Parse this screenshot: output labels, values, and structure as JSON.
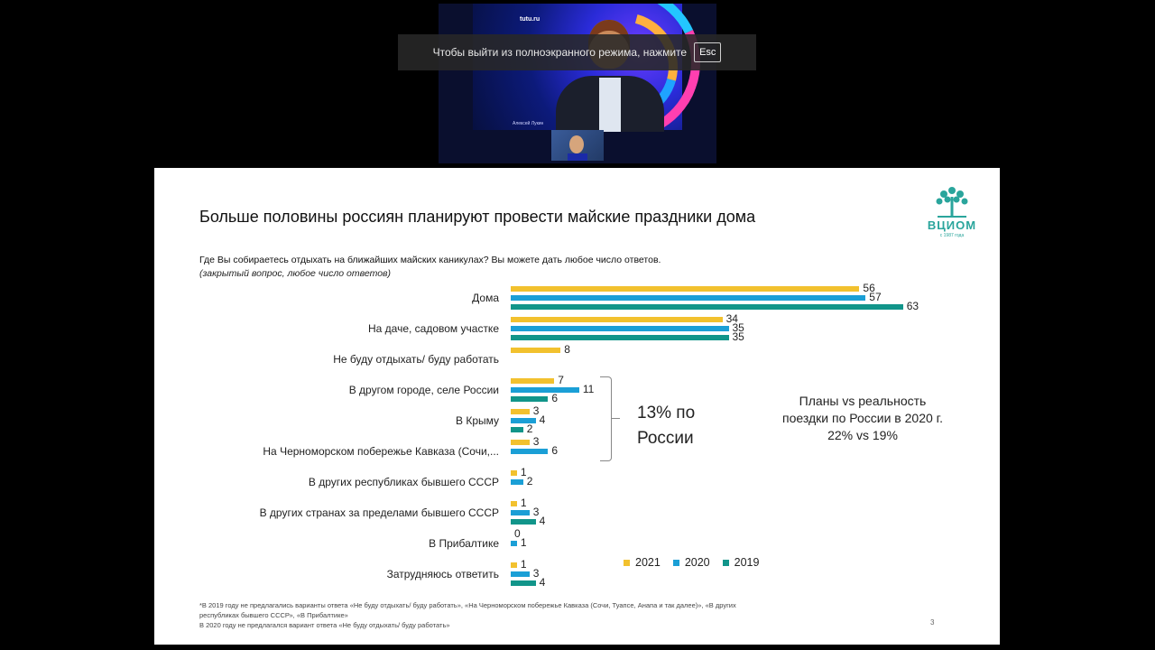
{
  "video": {
    "brand_logo": "tutu.ru",
    "speaker_name": "Алексей Лукин"
  },
  "fullscreen_toast": {
    "message": "Чтобы выйти из полноэкранного режима, нажмите",
    "key": "Esc"
  },
  "slide": {
    "title": "Больше половины россиян планируют провести майские праздники дома",
    "question": "Где Вы собираетесь отдыхать на ближайших майских каникулах? Вы можете дать любое число ответов.",
    "question_note": "(закрытый вопрос, любое число ответов)",
    "logo_text": "ВЦИОМ",
    "logo_sub": "с 1987 года",
    "callout_russia_line1": "13% по",
    "callout_russia_line2": "России",
    "callout_plans_line1": "Планы vs реальность",
    "callout_plans_line2": "поездки по России в 2020 г.",
    "callout_plans_line3": "22% vs 19%",
    "footnote_line1": "*В 2019 году не предлагались варианты ответа «Не буду отдыхать/ буду работать», «На Черноморском побережье Кавказа (Сочи, Туапсе, Анапа и так далее)», «В других",
    "footnote_line2": "республиках бывшего СССР», «В Прибалтике»",
    "footnote_line3": "В 2020 году не предлагался вариант ответа «Не буду отдыхать/ буду работать»",
    "page_number": "3"
  },
  "colors": {
    "y2021": "#f2c12e",
    "y2020": "#1b9fd6",
    "y2019": "#11958a"
  },
  "chart_data": {
    "type": "bar",
    "orientation": "horizontal",
    "title": "Больше половины россиян планируют провести майские праздники дома",
    "categories": [
      "Дома",
      "На даче, садовом участке",
      "Не буду отдыхать/ буду работать",
      "В другом городе, селе России",
      "В Крыму",
      "На Черноморском побережье Кавказа (Сочи,...",
      "В других республиках бывшего СССР",
      "В других странах за пределами бывшего СССР",
      "В Прибалтике",
      "Затрудняюсь ответить"
    ],
    "series": [
      {
        "name": "2021",
        "values": [
          56,
          34,
          8,
          7,
          3,
          3,
          1,
          1,
          0,
          1
        ]
      },
      {
        "name": "2020",
        "values": [
          57,
          35,
          null,
          11,
          4,
          6,
          2,
          3,
          1,
          3
        ]
      },
      {
        "name": "2019",
        "values": [
          63,
          35,
          null,
          6,
          2,
          null,
          null,
          4,
          null,
          4
        ]
      }
    ],
    "xlim": [
      0,
      63
    ],
    "legend_position": "bottom-right",
    "grid": false
  }
}
